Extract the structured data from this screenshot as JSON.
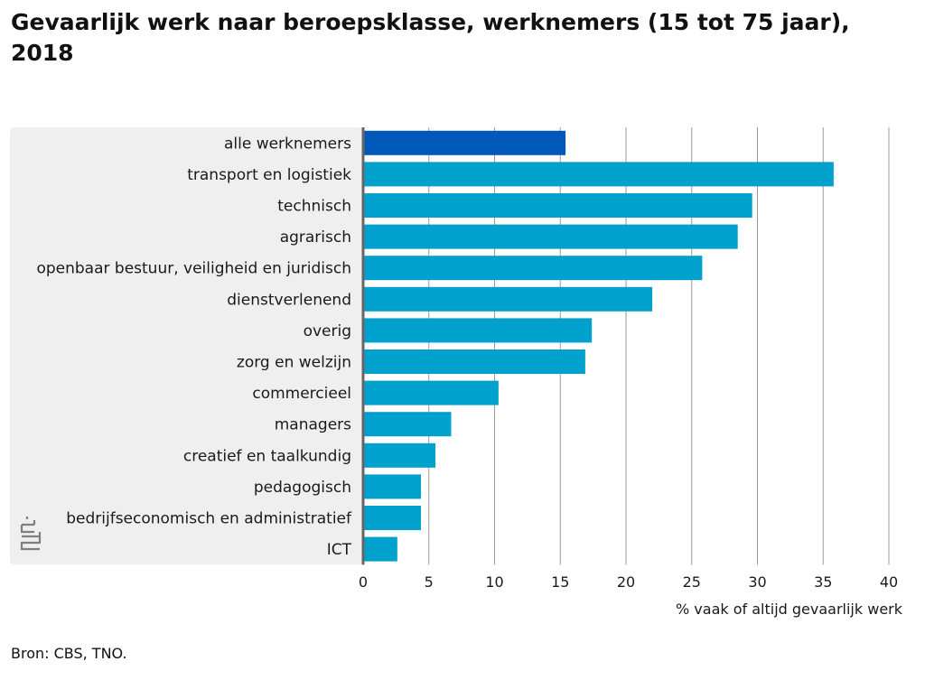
{
  "source": "Bron: CBS, TNO.",
  "colors": {
    "highlight": "#0058b8",
    "bar": "#00a1cd",
    "panel": "#efefef",
    "grid": "#9a9a9a",
    "axis": "#666666"
  },
  "chart_data": {
    "type": "bar",
    "orientation": "horizontal",
    "title": "Gevaarlijk werk naar beroepsklasse, werknemers (15 tot 75 jaar), 2018",
    "xlabel": "% vaak of altijd gevaarlijk werk",
    "ylabel": "",
    "xlim": [
      0,
      40
    ],
    "xticks": [
      0,
      5,
      10,
      15,
      20,
      25,
      30,
      35,
      40
    ],
    "grid": true,
    "categories": [
      "alle werknemers",
      "transport en logistiek",
      "technisch",
      "agrarisch",
      "openbaar bestuur, veiligheid en juridisch",
      "dienstverlenend",
      "overig",
      "zorg en welzijn",
      "commercieel",
      "managers",
      "creatief en taalkundig",
      "pedagogisch",
      "bedrijfseconomisch en administratief",
      "ICT"
    ],
    "values": [
      15.4,
      35.8,
      29.6,
      28.5,
      25.8,
      22.0,
      17.4,
      16.9,
      10.3,
      6.7,
      5.5,
      4.4,
      4.4,
      2.6
    ],
    "highlight_index": 0
  }
}
